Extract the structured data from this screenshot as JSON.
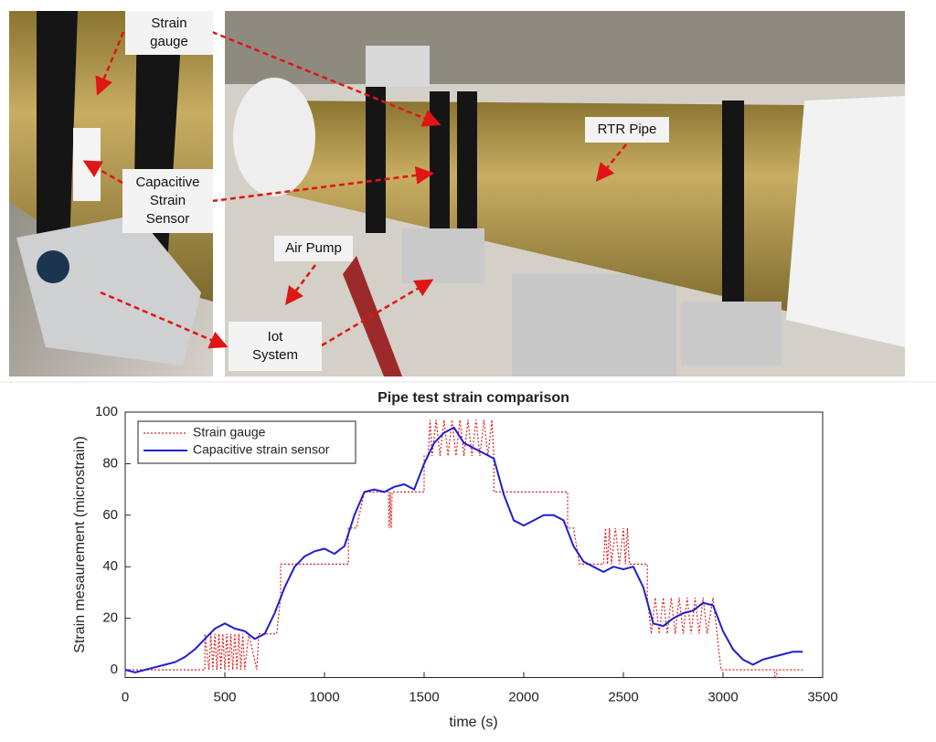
{
  "photo": {
    "labels": [
      "Strain gauge",
      "Capacitive Strain Sensor",
      "Air Pump",
      "Iot System",
      "RTR Pipe"
    ]
  },
  "chart_data": {
    "type": "line",
    "title": "Pipe test strain comparison",
    "xlabel": "time (s)",
    "ylabel": "Strain mesaurement (microstrain)",
    "xlim": [
      0,
      3500
    ],
    "xticks": [
      0,
      500,
      1000,
      1500,
      2000,
      2500,
      3000,
      3500
    ],
    "ylim": [
      -3,
      100
    ],
    "yticks": [
      0,
      20,
      40,
      60,
      80,
      100
    ],
    "legend": "upper left",
    "grid": false,
    "series": [
      {
        "name": "Strain gauge",
        "color": "#e02020",
        "style": "dotted",
        "x": [
          0,
          400,
          400,
          420,
          430,
          440,
          450,
          460,
          470,
          480,
          490,
          500,
          510,
          520,
          530,
          540,
          550,
          560,
          570,
          580,
          590,
          600,
          620,
          660,
          670,
          760,
          780,
          780,
          1120,
          1120,
          1160,
          1200,
          1320,
          1325,
          1330,
          1335,
          1340,
          1500,
          1500,
          1520,
          1530,
          1540,
          1560,
          1580,
          1600,
          1620,
          1640,
          1660,
          1680,
          1700,
          1720,
          1740,
          1760,
          1780,
          1800,
          1820,
          1840,
          1850,
          1850,
          2220,
          2220,
          2250,
          2280,
          2400,
          2410,
          2420,
          2430,
          2440,
          2460,
          2480,
          2500,
          2510,
          2520,
          2530,
          2620,
          2620,
          2640,
          2660,
          2680,
          2700,
          2720,
          2740,
          2760,
          2780,
          2800,
          2820,
          2840,
          2860,
          2880,
          2900,
          2920,
          2950,
          2990,
          3260,
          3260,
          3270,
          3270,
          3400
        ],
        "values": [
          0,
          0,
          14,
          0,
          14,
          0,
          14,
          0,
          14,
          0,
          14,
          0,
          14,
          0,
          14,
          0,
          14,
          0,
          14,
          0,
          14,
          0,
          14,
          0,
          14,
          14,
          28,
          41,
          41,
          55,
          55,
          69,
          69,
          55,
          69,
          55,
          69,
          69,
          83,
          83,
          97,
          83,
          97,
          83,
          97,
          83,
          97,
          83,
          97,
          83,
          97,
          83,
          97,
          83,
          97,
          83,
          97,
          83,
          69,
          69,
          55,
          55,
          41,
          41,
          55,
          41,
          55,
          41,
          55,
          41,
          55,
          41,
          55,
          41,
          41,
          28,
          14,
          28,
          14,
          28,
          14,
          28,
          14,
          28,
          14,
          28,
          14,
          28,
          14,
          28,
          14,
          28,
          0,
          0,
          -3,
          -3,
          0,
          0
        ]
      },
      {
        "name": "Capacitive strain sensor",
        "color": "#1f1fd0",
        "style": "solid",
        "x": [
          0,
          50,
          100,
          150,
          200,
          250,
          300,
          350,
          400,
          450,
          500,
          550,
          600,
          650,
          700,
          750,
          800,
          850,
          900,
          950,
          1000,
          1050,
          1100,
          1150,
          1200,
          1250,
          1300,
          1350,
          1400,
          1450,
          1500,
          1550,
          1600,
          1650,
          1700,
          1750,
          1800,
          1850,
          1900,
          1950,
          2000,
          2050,
          2100,
          2150,
          2200,
          2250,
          2300,
          2350,
          2400,
          2450,
          2500,
          2550,
          2600,
          2650,
          2700,
          2750,
          2800,
          2850,
          2900,
          2950,
          3000,
          3050,
          3100,
          3150,
          3200,
          3250,
          3300,
          3350,
          3400
        ],
        "values": [
          0,
          -1,
          0,
          1,
          2,
          3,
          5,
          8,
          12,
          16,
          18,
          16,
          15,
          12,
          14,
          22,
          32,
          40,
          44,
          46,
          47,
          45,
          48,
          60,
          69,
          70,
          69,
          71,
          72,
          70,
          80,
          88,
          92,
          94,
          88,
          86,
          84,
          82,
          68,
          58,
          56,
          58,
          60,
          60,
          58,
          48,
          42,
          40,
          38,
          40,
          39,
          40,
          32,
          18,
          17,
          20,
          22,
          23,
          26,
          25,
          15,
          8,
          4,
          2,
          4,
          5,
          6,
          7,
          7
        ]
      }
    ]
  }
}
